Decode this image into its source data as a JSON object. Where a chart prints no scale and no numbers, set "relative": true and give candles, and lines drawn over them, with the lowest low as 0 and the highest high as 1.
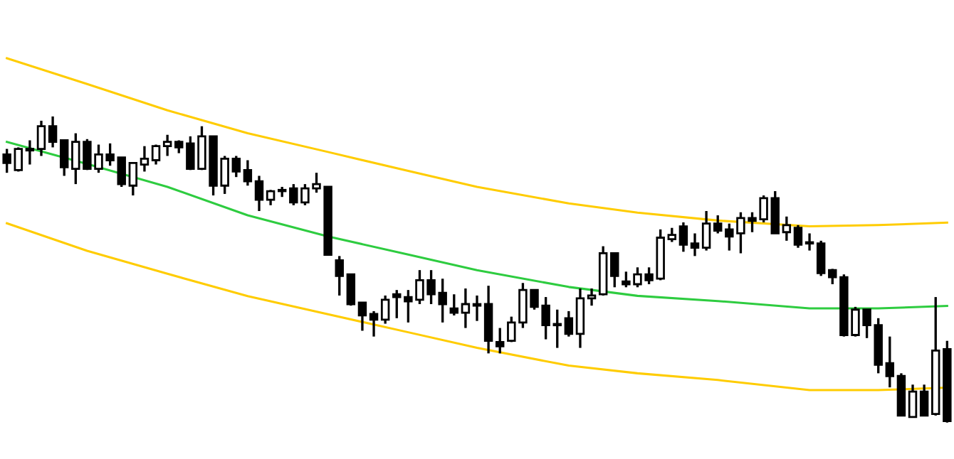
{
  "chart_data": {
    "type": "candlestick",
    "relative": true,
    "grid": false,
    "legend": false,
    "categories": [
      null,
      null,
      null,
      null,
      null,
      null,
      null,
      null,
      null,
      null,
      null,
      null,
      null,
      null,
      null,
      null,
      null,
      null,
      null,
      null,
      null,
      null,
      null,
      null,
      null,
      null,
      null,
      null,
      null,
      null,
      null,
      null,
      null,
      null,
      null,
      null,
      null,
      null,
      null,
      null,
      null,
      null,
      null,
      null,
      null,
      null,
      null,
      null,
      null,
      null,
      null,
      null,
      null,
      null,
      null,
      null,
      null,
      null,
      null,
      null,
      null,
      null,
      null,
      null,
      null,
      null,
      null,
      null,
      null,
      null,
      null,
      null,
      null,
      null,
      null,
      null,
      null,
      null,
      null,
      null,
      null,
      null,
      null
    ],
    "ohlc": [
      [
        0.876,
        0.894,
        0.816,
        0.848
      ],
      [
        0.825,
        0.899,
        0.82,
        0.894
      ],
      [
        0.889,
        0.922,
        0.843,
        0.894
      ],
      [
        0.894,
        0.986,
        0.871,
        0.968
      ],
      [
        0.968,
        1.0,
        0.899,
        0.917
      ],
      [
        0.922,
        0.922,
        0.806,
        0.834
      ],
      [
        0.829,
        0.945,
        0.779,
        0.917
      ],
      [
        0.917,
        0.926,
        0.825,
        0.829
      ],
      [
        0.829,
        0.908,
        0.816,
        0.876
      ],
      [
        0.876,
        0.912,
        0.839,
        0.857
      ],
      [
        0.866,
        0.866,
        0.77,
        0.779
      ],
      [
        0.774,
        0.848,
        0.742,
        0.848
      ],
      [
        0.843,
        0.903,
        0.82,
        0.862
      ],
      [
        0.857,
        0.908,
        0.843,
        0.903
      ],
      [
        0.903,
        0.94,
        0.871,
        0.917
      ],
      [
        0.917,
        0.922,
        0.88,
        0.899
      ],
      [
        0.912,
        0.935,
        0.825,
        0.829
      ],
      [
        0.829,
        0.968,
        0.825,
        0.935
      ],
      [
        0.935,
        0.935,
        0.742,
        0.774
      ],
      [
        0.774,
        0.871,
        0.747,
        0.862
      ],
      [
        0.862,
        0.871,
        0.802,
        0.82
      ],
      [
        0.825,
        0.857,
        0.774,
        0.788
      ],
      [
        0.788,
        0.806,
        0.691,
        0.728
      ],
      [
        0.728,
        0.76,
        0.71,
        0.756
      ],
      [
        0.756,
        0.77,
        0.737,
        0.756
      ],
      [
        0.765,
        0.779,
        0.71,
        0.719
      ],
      [
        0.719,
        0.779,
        0.71,
        0.765
      ],
      [
        0.765,
        0.816,
        0.751,
        0.779
      ],
      [
        0.77,
        0.77,
        0.548,
        0.548
      ],
      [
        0.53,
        0.544,
        0.415,
        0.479
      ],
      [
        0.484,
        0.484,
        0.382,
        0.387
      ],
      [
        0.392,
        0.392,
        0.3,
        0.35
      ],
      [
        0.355,
        0.364,
        0.281,
        0.336
      ],
      [
        0.336,
        0.415,
        0.323,
        0.401
      ],
      [
        0.419,
        0.433,
        0.341,
        0.41
      ],
      [
        0.41,
        0.433,
        0.327,
        0.396
      ],
      [
        0.401,
        0.498,
        0.387,
        0.465
      ],
      [
        0.465,
        0.498,
        0.387,
        0.419
      ],
      [
        0.424,
        0.47,
        0.327,
        0.387
      ],
      [
        0.373,
        0.419,
        0.35,
        0.359
      ],
      [
        0.359,
        0.438,
        0.309,
        0.387
      ],
      [
        0.387,
        0.415,
        0.332,
        0.382
      ],
      [
        0.387,
        0.447,
        0.226,
        0.267
      ],
      [
        0.263,
        0.309,
        0.226,
        0.249
      ],
      [
        0.267,
        0.346,
        0.263,
        0.327
      ],
      [
        0.327,
        0.456,
        0.309,
        0.433
      ],
      [
        0.433,
        0.433,
        0.369,
        0.378
      ],
      [
        0.382,
        0.41,
        0.272,
        0.318
      ],
      [
        0.318,
        0.369,
        0.244,
        0.318
      ],
      [
        0.341,
        0.364,
        0.281,
        0.29
      ],
      [
        0.29,
        0.438,
        0.244,
        0.406
      ],
      [
        0.406,
        0.438,
        0.382,
        0.415
      ],
      [
        0.419,
        0.576,
        0.415,
        0.553
      ],
      [
        0.553,
        0.553,
        0.442,
        0.479
      ],
      [
        0.461,
        0.493,
        0.442,
        0.452
      ],
      [
        0.452,
        0.507,
        0.442,
        0.484
      ],
      [
        0.484,
        0.507,
        0.452,
        0.465
      ],
      [
        0.47,
        0.631,
        0.465,
        0.604
      ],
      [
        0.599,
        0.636,
        0.59,
        0.613
      ],
      [
        0.641,
        0.654,
        0.558,
        0.581
      ],
      [
        0.585,
        0.618,
        0.544,
        0.571
      ],
      [
        0.571,
        0.691,
        0.562,
        0.65
      ],
      [
        0.65,
        0.677,
        0.618,
        0.627
      ],
      [
        0.631,
        0.65,
        0.562,
        0.608
      ],
      [
        0.618,
        0.687,
        0.553,
        0.668
      ],
      [
        0.668,
        0.687,
        0.622,
        0.659
      ],
      [
        0.664,
        0.742,
        0.654,
        0.733
      ],
      [
        0.733,
        0.756,
        0.618,
        0.618
      ],
      [
        0.622,
        0.673,
        0.594,
        0.645
      ],
      [
        0.636,
        0.645,
        0.571,
        0.581
      ],
      [
        0.585,
        0.618,
        0.562,
        0.585
      ],
      [
        0.585,
        0.594,
        0.479,
        0.488
      ],
      [
        0.498,
        0.502,
        0.452,
        0.475
      ],
      [
        0.475,
        0.484,
        0.281,
        0.286
      ],
      [
        0.286,
        0.378,
        0.281,
        0.369
      ],
      [
        0.369,
        0.369,
        0.276,
        0.318
      ],
      [
        0.318,
        0.341,
        0.161,
        0.189
      ],
      [
        0.194,
        0.281,
        0.115,
        0.152
      ],
      [
        0.152,
        0.161,
        0.023,
        0.023
      ],
      [
        0.018,
        0.124,
        0.018,
        0.101
      ],
      [
        0.101,
        0.124,
        0.023,
        0.023
      ],
      [
        0.028,
        0.41,
        0.023,
        0.235
      ],
      [
        0.24,
        0.267,
        0.0,
        0.005
      ]
    ],
    "series": [
      {
        "type": "line",
        "color": "#2ecc40",
        "values": [
          0.917,
          null,
          null,
          null,
          null,
          null,
          null,
          0.845,
          null,
          null,
          null,
          null,
          null,
          null,
          0.77,
          null,
          null,
          null,
          null,
          null,
          null,
          0.677,
          null,
          null,
          null,
          null,
          null,
          null,
          0.608,
          null,
          null,
          null,
          null,
          null,
          null,
          0.549,
          null,
          null,
          null,
          null,
          null,
          0.498,
          null,
          null,
          null,
          null,
          null,
          null,
          null,
          0.443,
          null,
          null,
          null,
          null,
          null,
          0.414,
          null,
          null,
          null,
          null,
          null,
          null,
          0.397,
          null,
          null,
          null,
          null,
          null,
          null,
          null,
          0.373,
          null,
          null,
          null,
          null,
          null,
          0.373,
          null,
          null,
          null,
          null,
          null,
          0.381
        ]
      },
      {
        "type": "line",
        "color": "#ffcc00",
        "values": [
          1.19,
          null,
          null,
          null,
          null,
          null,
          null,
          1.106,
          null,
          null,
          null,
          null,
          null,
          null,
          1.02,
          null,
          null,
          null,
          null,
          null,
          null,
          0.945,
          null,
          null,
          null,
          null,
          null,
          null,
          0.884,
          null,
          null,
          null,
          null,
          null,
          null,
          0.822,
          null,
          null,
          null,
          null,
          null,
          0.77,
          null,
          null,
          null,
          null,
          null,
          null,
          null,
          0.716,
          null,
          null,
          null,
          null,
          null,
          0.686,
          null,
          null,
          null,
          null,
          null,
          null,
          0.66,
          null,
          null,
          null,
          null,
          null,
          null,
          null,
          0.641,
          null,
          null,
          null,
          null,
          null,
          0.645,
          null,
          null,
          null,
          null,
          null,
          0.653
        ]
      },
      {
        "type": "line",
        "color": "#ffcc00",
        "values": [
          0.651,
          null,
          null,
          null,
          null,
          null,
          null,
          0.561,
          null,
          null,
          null,
          null,
          null,
          null,
          0.486,
          null,
          null,
          null,
          null,
          null,
          null,
          0.413,
          null,
          null,
          null,
          null,
          null,
          null,
          0.354,
          null,
          null,
          null,
          null,
          null,
          null,
          0.295,
          null,
          null,
          null,
          null,
          null,
          0.244,
          null,
          null,
          null,
          null,
          null,
          null,
          null,
          0.186,
          null,
          null,
          null,
          null,
          null,
          0.161,
          null,
          null,
          null,
          null,
          null,
          null,
          0.139,
          null,
          null,
          null,
          null,
          null,
          null,
          null,
          0.106,
          null,
          null,
          null,
          null,
          null,
          0.106,
          null,
          null,
          null,
          null,
          null,
          0.114
        ]
      }
    ]
  }
}
